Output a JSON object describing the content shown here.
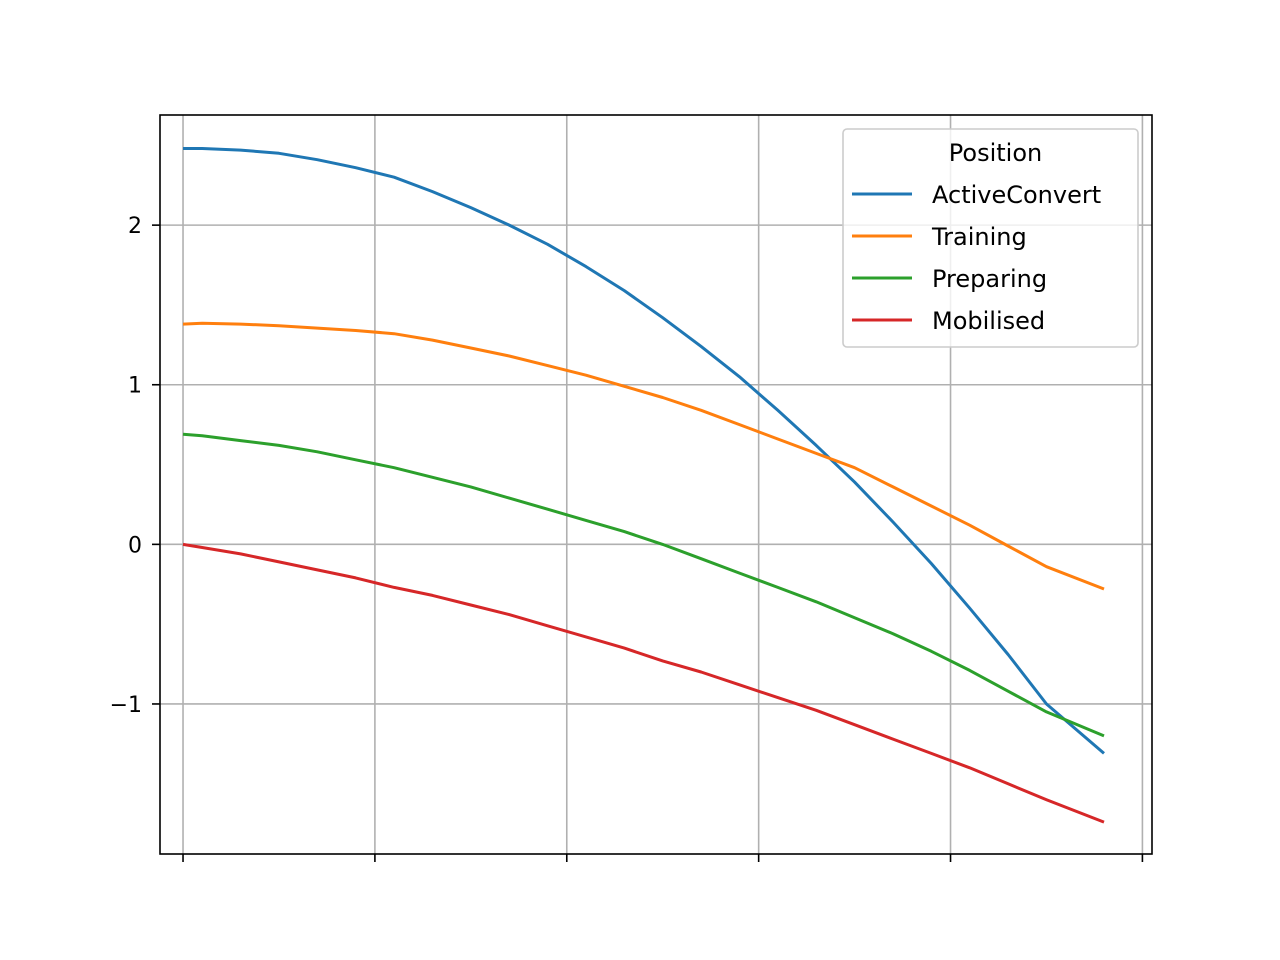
{
  "chart_data": {
    "type": "line",
    "x": [
      0,
      0.2,
      0.6,
      1.0,
      1.4,
      1.8,
      2.2,
      2.6,
      3.0,
      3.4,
      3.8,
      4.2,
      4.6,
      5.0,
      5.4,
      5.8,
      6.2,
      6.6,
      7.0,
      7.4,
      7.8,
      8.2,
      8.6,
      9.0,
      9.6
    ],
    "series": [
      {
        "name": "ActiveConvert",
        "color": "#1f77b4",
        "values": [
          2.48,
          2.48,
          2.47,
          2.45,
          2.41,
          2.36,
          2.3,
          2.21,
          2.11,
          2.0,
          1.88,
          1.74,
          1.59,
          1.42,
          1.24,
          1.05,
          0.84,
          0.62,
          0.39,
          0.14,
          -0.12,
          -0.4,
          -0.69,
          -1.0,
          -1.31
        ]
      },
      {
        "name": "Training",
        "color": "#ff7f0e",
        "values": [
          1.38,
          1.385,
          1.38,
          1.37,
          1.355,
          1.34,
          1.32,
          1.28,
          1.23,
          1.18,
          1.12,
          1.06,
          0.99,
          0.92,
          0.84,
          0.75,
          0.66,
          0.57,
          0.48,
          0.36,
          0.24,
          0.12,
          -0.01,
          -0.14,
          -0.28
        ]
      },
      {
        "name": "Preparing",
        "color": "#2ca02c",
        "values": [
          0.69,
          0.68,
          0.65,
          0.62,
          0.58,
          0.53,
          0.48,
          0.42,
          0.36,
          0.29,
          0.22,
          0.15,
          0.08,
          0.0,
          -0.09,
          -0.18,
          -0.27,
          -0.36,
          -0.46,
          -0.56,
          -0.67,
          -0.79,
          -0.92,
          -1.05,
          -1.2
        ]
      },
      {
        "name": "Mobilised",
        "color": "#d62728",
        "values": [
          0.0,
          -0.02,
          -0.06,
          -0.11,
          -0.16,
          -0.21,
          -0.27,
          -0.32,
          -0.38,
          -0.44,
          -0.51,
          -0.58,
          -0.65,
          -0.73,
          -0.8,
          -0.88,
          -0.96,
          -1.04,
          -1.13,
          -1.22,
          -1.31,
          -1.4,
          -1.5,
          -1.6,
          -1.74
        ]
      }
    ],
    "xlim": [
      -0.24,
      10.1
    ],
    "ylim": [
      -1.94,
      2.69
    ],
    "x_ticks": [
      0,
      2,
      4,
      6,
      8,
      10
    ],
    "y_ticks": [
      -1,
      0,
      1,
      2
    ],
    "y_tick_labels": [
      "−1",
      "0",
      "1",
      "2"
    ],
    "grid": true,
    "legend": {
      "title": "Position",
      "placement": "upper right"
    }
  }
}
